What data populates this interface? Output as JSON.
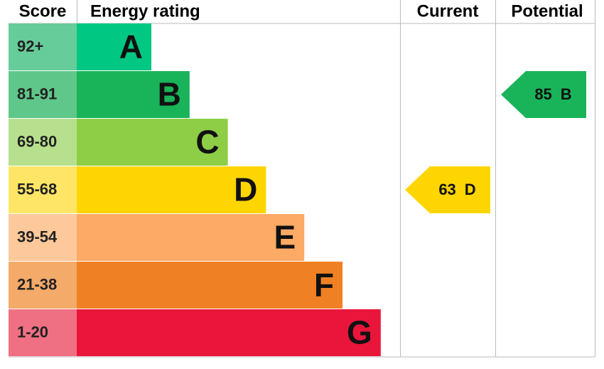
{
  "chart_data": {
    "type": "epc",
    "headers": {
      "score": "Score",
      "rating": "Energy rating",
      "current": "Current",
      "potential": "Potential"
    },
    "bands": [
      {
        "score": "92+",
        "letter": "A",
        "color": "#00c781",
        "score_color": "#66cc99"
      },
      {
        "score": "81-91",
        "letter": "B",
        "color": "#19b459",
        "score_color": "#5fc789"
      },
      {
        "score": "69-80",
        "letter": "C",
        "color": "#8dce46",
        "score_color": "#b7e08e"
      },
      {
        "score": "55-68",
        "letter": "D",
        "color": "#ffd500",
        "score_color": "#ffe566"
      },
      {
        "score": "39-54",
        "letter": "E",
        "color": "#fcaa65",
        "score_color": "#fdc89a"
      },
      {
        "score": "21-38",
        "letter": "F",
        "color": "#ef8023",
        "score_color": "#f4aa68"
      },
      {
        "score": "1-20",
        "letter": "G",
        "color": "#e9153b",
        "score_color": "#f07083"
      }
    ],
    "current": {
      "value": 63,
      "letter": "D"
    },
    "potential": {
      "value": 85,
      "letter": "B"
    }
  }
}
